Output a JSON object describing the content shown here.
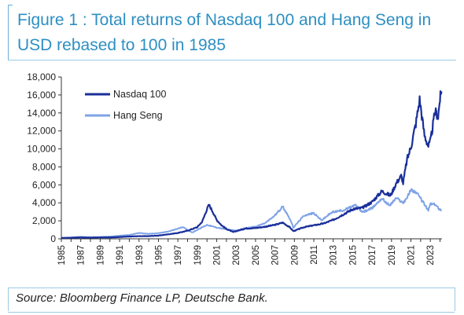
{
  "figure": {
    "title_line1": "Figure 1 : Total returns of Nasdaq 100 and Hang Seng in",
    "title_line2": "USD rebased to 100 in 1985",
    "source": "Source: Bloomberg Finance LP, Deutsche Bank."
  },
  "colors": {
    "title": "#2e8fc2",
    "nasdaq": "#1a2f9a",
    "hangseng": "#7fa3e6",
    "frame": "#9cc9e6"
  },
  "chart_data": {
    "type": "line",
    "title": "Figure 1 : Total returns of Nasdaq 100 and Hang Seng in USD rebased to 100 in 1985",
    "xlabel": "",
    "ylabel": "",
    "xlim": [
      1985,
      2024.2
    ],
    "ylim": [
      0,
      18000
    ],
    "y_ticks": [
      0,
      2000,
      4000,
      6000,
      8000,
      10000,
      12000,
      14000,
      16000,
      18000
    ],
    "y_tick_labels": [
      "0",
      "2,000",
      "4,000",
      "6,000",
      "8,000",
      "10,000",
      "12,000",
      "14,000",
      "16,000",
      "18,000"
    ],
    "x_ticks": [
      1985,
      1987,
      1989,
      1991,
      1993,
      1995,
      1997,
      1999,
      2001,
      2003,
      2005,
      2007,
      2009,
      2011,
      2013,
      2015,
      2017,
      2019,
      2021,
      2023
    ],
    "x_tick_labels": [
      "1985",
      "1987",
      "1989",
      "1991",
      "1993",
      "1995",
      "1997",
      "1999",
      "2001",
      "2003",
      "2005",
      "2007",
      "2009",
      "2011",
      "2013",
      "2015",
      "2017",
      "2019",
      "2021",
      "2023"
    ],
    "grid": false,
    "legend_position": "top-left",
    "series": [
      {
        "name": "Nasdaq 100",
        "color": "#1a2f9a",
        "points": [
          [
            1985.0,
            100
          ],
          [
            1986.0,
            120
          ],
          [
            1987.0,
            150
          ],
          [
            1988.0,
            130
          ],
          [
            1989.0,
            150
          ],
          [
            1990.0,
            150
          ],
          [
            1991.0,
            200
          ],
          [
            1992.0,
            260
          ],
          [
            1993.0,
            290
          ],
          [
            1994.0,
            300
          ],
          [
            1995.0,
            360
          ],
          [
            1996.0,
            500
          ],
          [
            1997.0,
            650
          ],
          [
            1998.0,
            900
          ],
          [
            1999.0,
            1300
          ],
          [
            1999.5,
            1900
          ],
          [
            2000.0,
            3300
          ],
          [
            2000.2,
            3800
          ],
          [
            2000.6,
            3000
          ],
          [
            2001.0,
            2100
          ],
          [
            2001.5,
            1500
          ],
          [
            2002.0,
            1100
          ],
          [
            2002.7,
            750
          ],
          [
            2003.0,
            850
          ],
          [
            2003.5,
            1000
          ],
          [
            2004.0,
            1150
          ],
          [
            2005.0,
            1200
          ],
          [
            2006.0,
            1350
          ],
          [
            2007.0,
            1550
          ],
          [
            2007.8,
            1800
          ],
          [
            2008.5,
            1300
          ],
          [
            2008.9,
            850
          ],
          [
            2009.5,
            1100
          ],
          [
            2010.0,
            1300
          ],
          [
            2011.0,
            1500
          ],
          [
            2012.0,
            1700
          ],
          [
            2013.0,
            2100
          ],
          [
            2014.0,
            2700
          ],
          [
            2015.0,
            3300
          ],
          [
            2016.0,
            3450
          ],
          [
            2017.0,
            4100
          ],
          [
            2018.0,
            5300
          ],
          [
            2018.9,
            4800
          ],
          [
            2019.5,
            6200
          ],
          [
            2020.0,
            7000
          ],
          [
            2020.2,
            6200
          ],
          [
            2020.6,
            8800
          ],
          [
            2021.0,
            10200
          ],
          [
            2021.5,
            12800
          ],
          [
            2021.9,
            15500
          ],
          [
            2022.4,
            11500
          ],
          [
            2022.8,
            10300
          ],
          [
            2023.0,
            10800
          ],
          [
            2023.5,
            14200
          ],
          [
            2023.8,
            13600
          ],
          [
            2024.0,
            15600
          ],
          [
            2024.15,
            16400
          ]
        ]
      },
      {
        "name": "Hang Seng",
        "color": "#7fa3e6",
        "points": [
          [
            1985.0,
            100
          ],
          [
            1986.0,
            140
          ],
          [
            1987.0,
            230
          ],
          [
            1987.9,
            160
          ],
          [
            1988.5,
            190
          ],
          [
            1989.0,
            210
          ],
          [
            1990.0,
            250
          ],
          [
            1991.0,
            340
          ],
          [
            1992.0,
            430
          ],
          [
            1993.0,
            650
          ],
          [
            1994.0,
            550
          ],
          [
            1995.0,
            630
          ],
          [
            1996.0,
            800
          ],
          [
            1997.5,
            1300
          ],
          [
            1998.5,
            700
          ],
          [
            1999.0,
            1000
          ],
          [
            2000.0,
            1550
          ],
          [
            2001.0,
            1250
          ],
          [
            2002.0,
            1050
          ],
          [
            2003.0,
            900
          ],
          [
            2004.0,
            1200
          ],
          [
            2005.0,
            1350
          ],
          [
            2006.0,
            1750
          ],
          [
            2007.0,
            2600
          ],
          [
            2007.8,
            3600
          ],
          [
            2008.5,
            2300
          ],
          [
            2008.9,
            1250
          ],
          [
            2009.5,
            2000
          ],
          [
            2010.0,
            2600
          ],
          [
            2011.0,
            2850
          ],
          [
            2011.8,
            2050
          ],
          [
            2012.5,
            2650
          ],
          [
            2013.0,
            3000
          ],
          [
            2014.0,
            3150
          ],
          [
            2015.3,
            3750
          ],
          [
            2016.0,
            2950
          ],
          [
            2017.0,
            3400
          ],
          [
            2018.0,
            4500
          ],
          [
            2018.8,
            3700
          ],
          [
            2019.5,
            4550
          ],
          [
            2020.2,
            4000
          ],
          [
            2020.6,
            4600
          ],
          [
            2021.0,
            5450
          ],
          [
            2021.5,
            5200
          ],
          [
            2022.0,
            4500
          ],
          [
            2022.8,
            3150
          ],
          [
            2023.0,
            3900
          ],
          [
            2023.5,
            3800
          ],
          [
            2023.9,
            3350
          ],
          [
            2024.15,
            3200
          ]
        ]
      }
    ]
  }
}
